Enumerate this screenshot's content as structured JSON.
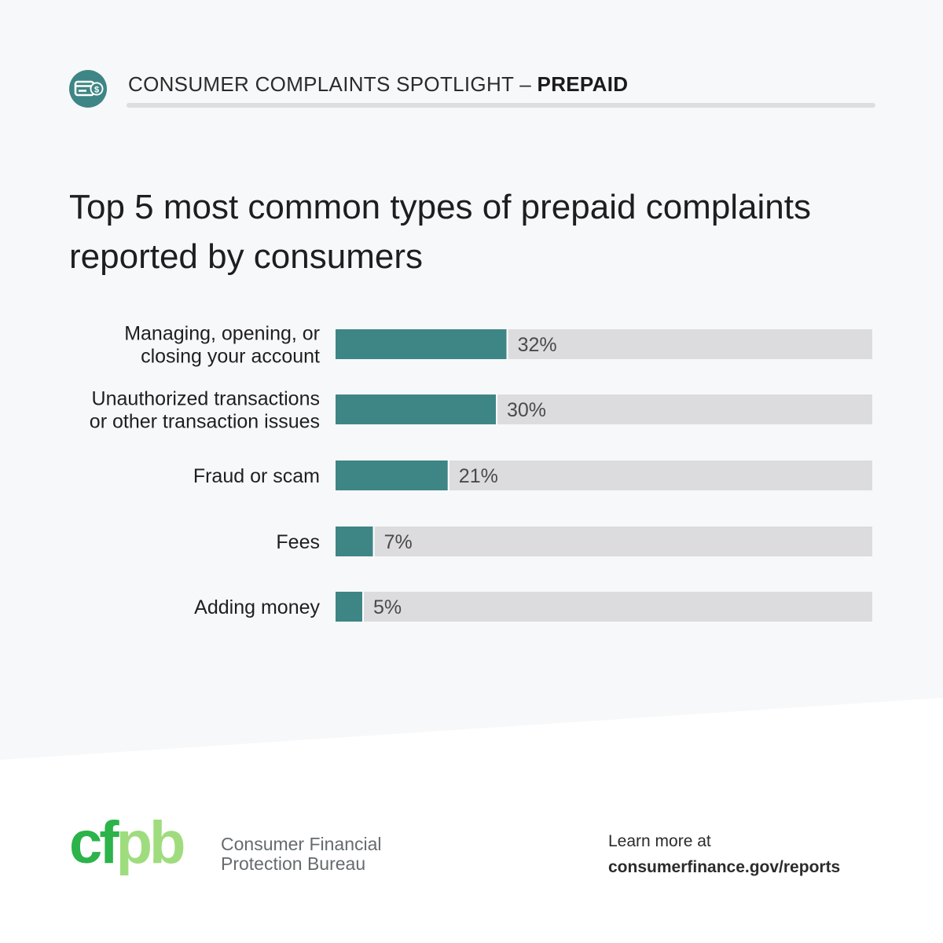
{
  "header": {
    "spotlight_label": "CONSUMER COMPLAINTS SPOTLIGHT –",
    "topic_label": "PREPAID",
    "icon": "prepaid-card-icon"
  },
  "colors": {
    "accent": "#3e8685",
    "bar_track": "#dcdcdf",
    "background": "#f7f8fa",
    "logo_green": "#2cb34a",
    "logo_light_green": "#9fdc7e"
  },
  "chart_data": {
    "type": "bar",
    "orientation": "horizontal",
    "title": "Top 5 most common types of prepaid complaints reported by consumers",
    "categories": [
      [
        "Managing, opening, or",
        "closing your account"
      ],
      [
        "Unauthorized transactions",
        "or other transaction issues"
      ],
      [
        "Fraud or scam"
      ],
      [
        "Fees"
      ],
      [
        "Adding money"
      ]
    ],
    "values": [
      32,
      30,
      21,
      7,
      5
    ],
    "data_labels": [
      "32%",
      "30%",
      "21%",
      "7%",
      "5%"
    ],
    "xlim": [
      0,
      100
    ],
    "grid": false,
    "legend": "none"
  },
  "footer": {
    "logo_text": "cfpb",
    "agency_line1": "Consumer Financial",
    "agency_line2": "Protection Bureau",
    "learn_more": "Learn more at",
    "url": "consumerfinance.gov/reports"
  }
}
